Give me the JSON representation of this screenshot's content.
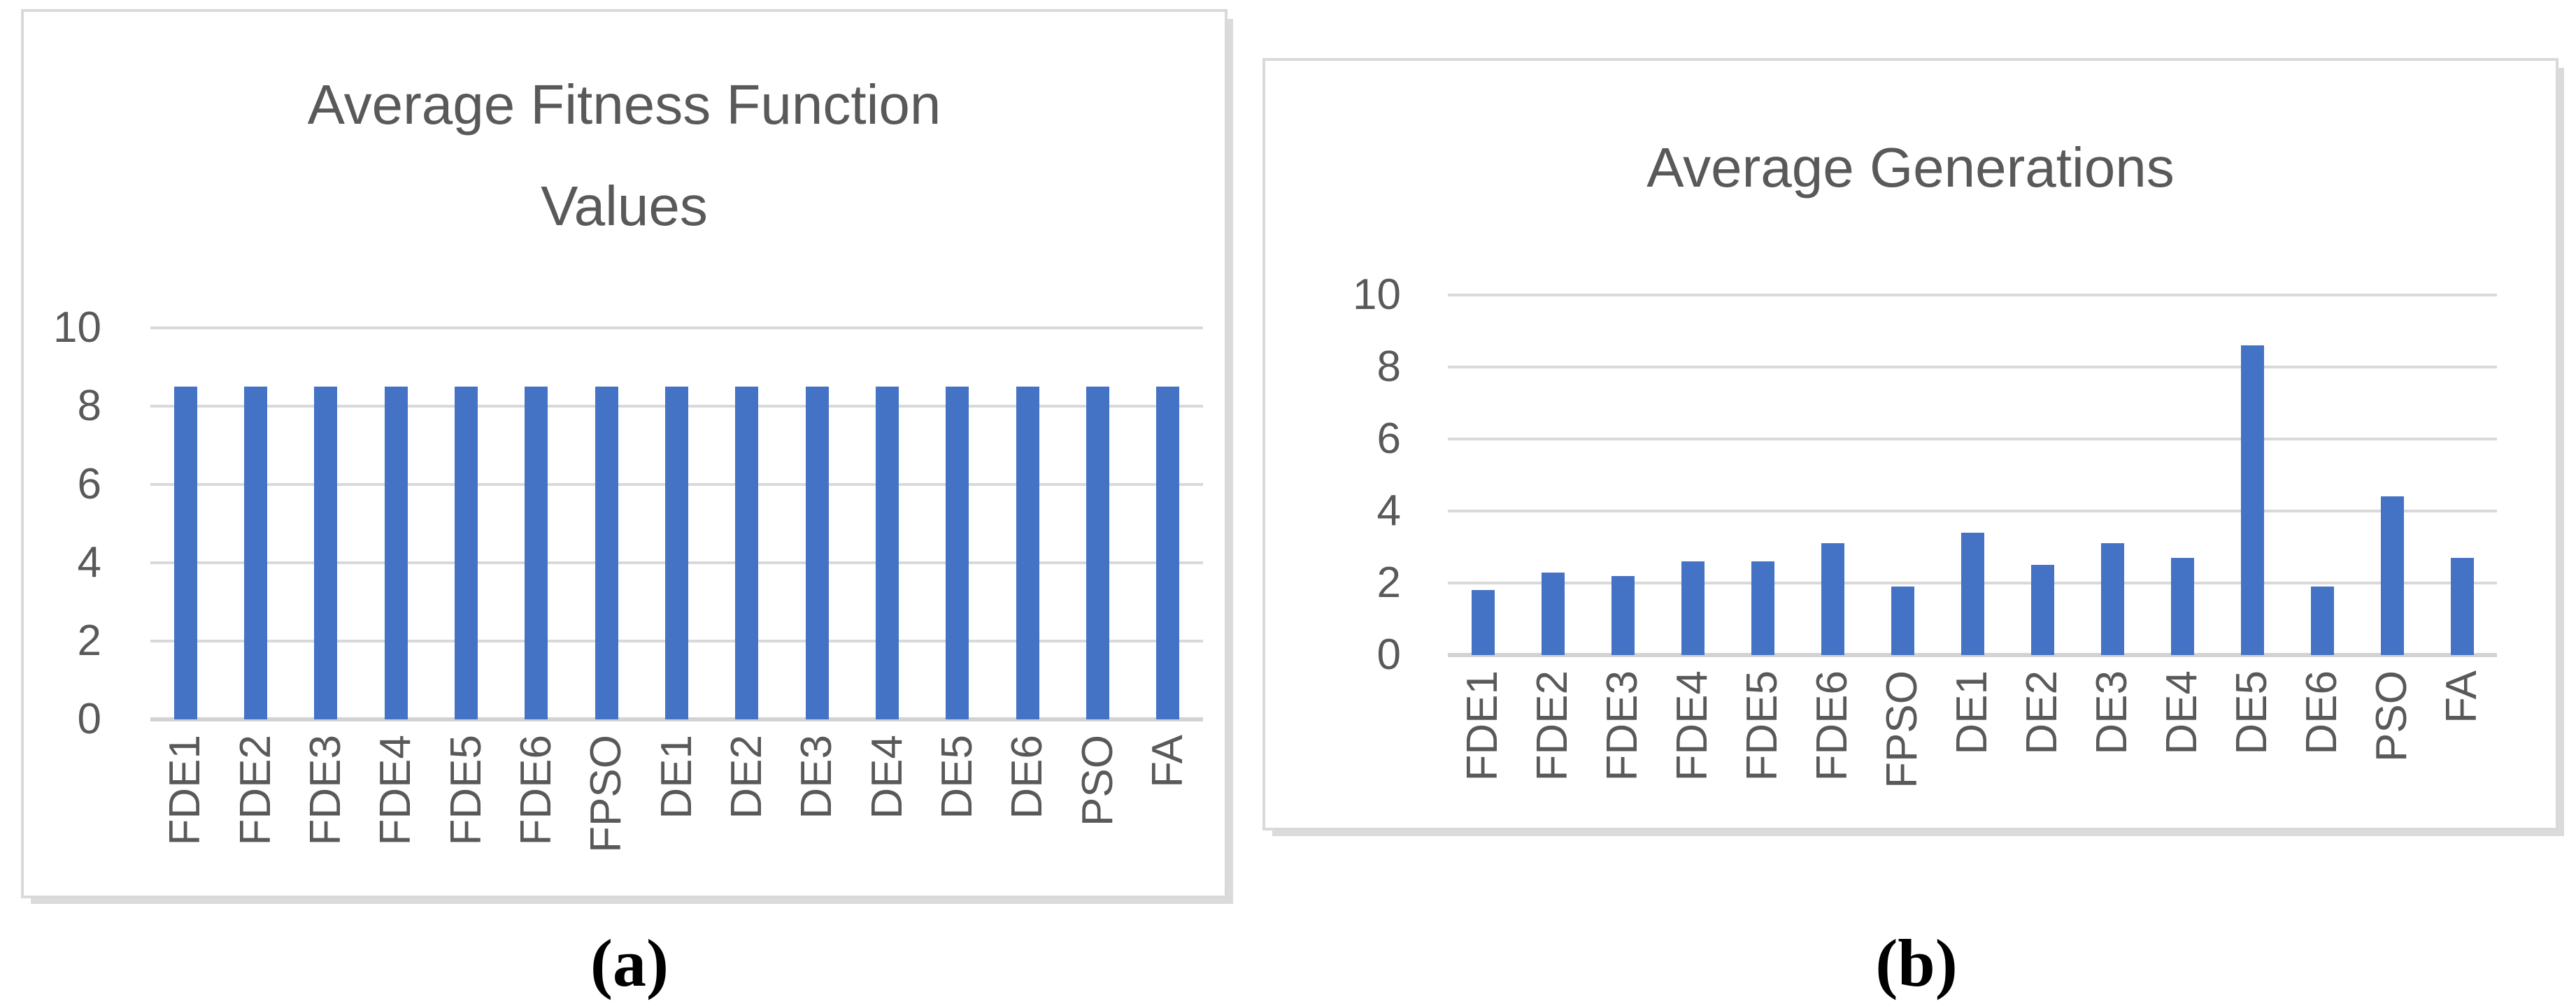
{
  "figure": {
    "captions": {
      "a": "(a)",
      "b": "(b)"
    },
    "colors": {
      "bar": "#4472C4",
      "grid": "#D9D9D9",
      "axis_text": "#595959",
      "title_text": "#595959",
      "panel_border": "#D9D9D9",
      "shadow": "#DBDBDB"
    }
  },
  "chart_data": [
    {
      "type": "bar",
      "title": "Average Fitness Function Values",
      "title_lines": [
        "Average Fitness Function",
        "Values"
      ],
      "categories": [
        "FDE1",
        "FDE2",
        "FDE3",
        "FDE4",
        "FDE5",
        "FDE6",
        "FPSO",
        "DE1",
        "DE2",
        "DE3",
        "DE4",
        "DE5",
        "DE6",
        "PSO",
        "FA"
      ],
      "values": [
        8.5,
        8.5,
        8.5,
        8.5,
        8.5,
        8.5,
        8.5,
        8.5,
        8.5,
        8.5,
        8.5,
        8.5,
        8.5,
        8.5,
        8.5
      ],
      "xlabel": "",
      "ylabel": "",
      "ylim": [
        0,
        10
      ],
      "yticks": [
        0,
        2,
        4,
        6,
        8,
        10
      ],
      "grid": true,
      "legend": false,
      "bar_color": "#4472C4"
    },
    {
      "type": "bar",
      "title": "Average Generations",
      "title_lines": [
        "Average Generations"
      ],
      "categories": [
        "FDE1",
        "FDE2",
        "FDE3",
        "FDE4",
        "FDE5",
        "FDE6",
        "FPSO",
        "DE1",
        "DE2",
        "DE3",
        "DE4",
        "DE5",
        "DE6",
        "PSO",
        "FA"
      ],
      "values": [
        1.8,
        2.3,
        2.2,
        2.6,
        2.6,
        3.1,
        1.9,
        3.4,
        2.5,
        3.1,
        2.7,
        8.6,
        1.9,
        4.4,
        2.7
      ],
      "xlabel": "",
      "ylabel": "",
      "ylim": [
        0,
        10
      ],
      "yticks": [
        0,
        2,
        4,
        6,
        8,
        10
      ],
      "grid": true,
      "legend": false,
      "bar_color": "#4472C4"
    }
  ]
}
